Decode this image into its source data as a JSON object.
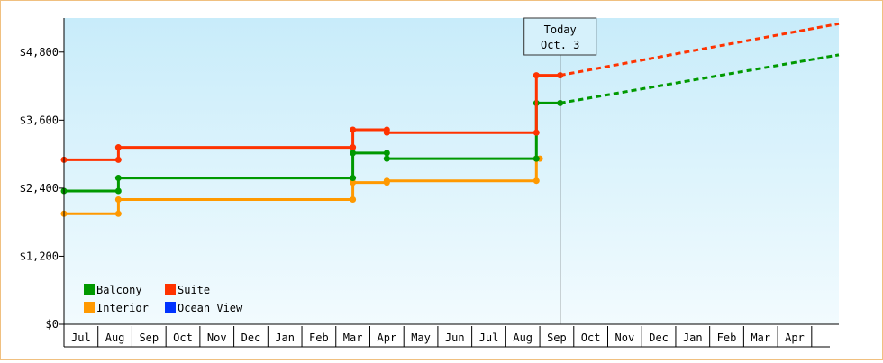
{
  "chart_data": {
    "type": "line",
    "title": "",
    "xlabel": "",
    "ylabel": "",
    "ylim": [
      0,
      5400
    ],
    "y_ticks": [
      "$0",
      "$1,200",
      "$2,400",
      "$3,600",
      "$4,800"
    ],
    "y_tick_values": [
      0,
      1200,
      2400,
      3600,
      4800
    ],
    "x_tick_labels": [
      "Jul",
      "Aug",
      "Sep",
      "Oct",
      "Nov",
      "Dec",
      "Jan",
      "Feb",
      "Mar",
      "Apr",
      "May",
      "Jun",
      "Jul",
      "Aug",
      "Sep",
      "Oct",
      "Nov",
      "Dec",
      "Jan",
      "Feb",
      "Mar",
      "Apr"
    ],
    "x_range_months": [
      -0.5,
      22.3
    ],
    "grid": false,
    "legend_position": "bottom-left",
    "today": {
      "label_line1": "Today",
      "label_line2": "Oct. 3",
      "x": 14.1
    },
    "series": [
      {
        "name": "Balcony",
        "color": "#009900",
        "step_points": [
          [
            -0.5,
            2350
          ],
          [
            1.1,
            2350
          ],
          [
            1.1,
            2580
          ],
          [
            8.0,
            2580
          ],
          [
            8.0,
            3020
          ],
          [
            9.0,
            3020
          ],
          [
            9.0,
            2920
          ],
          [
            13.4,
            2920
          ],
          [
            13.4,
            3900
          ],
          [
            14.1,
            3900
          ]
        ],
        "forecast": [
          [
            14.1,
            3900
          ],
          [
            22.3,
            4750
          ]
        ]
      },
      {
        "name": "Suite",
        "color": "#ff3300",
        "step_points": [
          [
            -0.5,
            2900
          ],
          [
            1.1,
            2900
          ],
          [
            1.1,
            3120
          ],
          [
            8.0,
            3120
          ],
          [
            8.0,
            3430
          ],
          [
            9.0,
            3430
          ],
          [
            9.0,
            3380
          ],
          [
            13.4,
            3380
          ],
          [
            13.4,
            4390
          ],
          [
            14.1,
            4390
          ]
        ],
        "forecast": [
          [
            14.1,
            4390
          ],
          [
            22.3,
            5300
          ]
        ]
      },
      {
        "name": "Interior",
        "color": "#ff9900",
        "step_points": [
          [
            -0.5,
            1950
          ],
          [
            1.1,
            1950
          ],
          [
            1.1,
            2200
          ],
          [
            8.0,
            2200
          ],
          [
            8.0,
            2500
          ],
          [
            9.0,
            2500
          ],
          [
            9.0,
            2530
          ],
          [
            13.4,
            2530
          ],
          [
            13.4,
            2920
          ],
          [
            13.5,
            2920
          ]
        ],
        "forecast": []
      },
      {
        "name": "Ocean View",
        "color": "#0033ff",
        "step_points": [],
        "forecast": []
      }
    ]
  }
}
